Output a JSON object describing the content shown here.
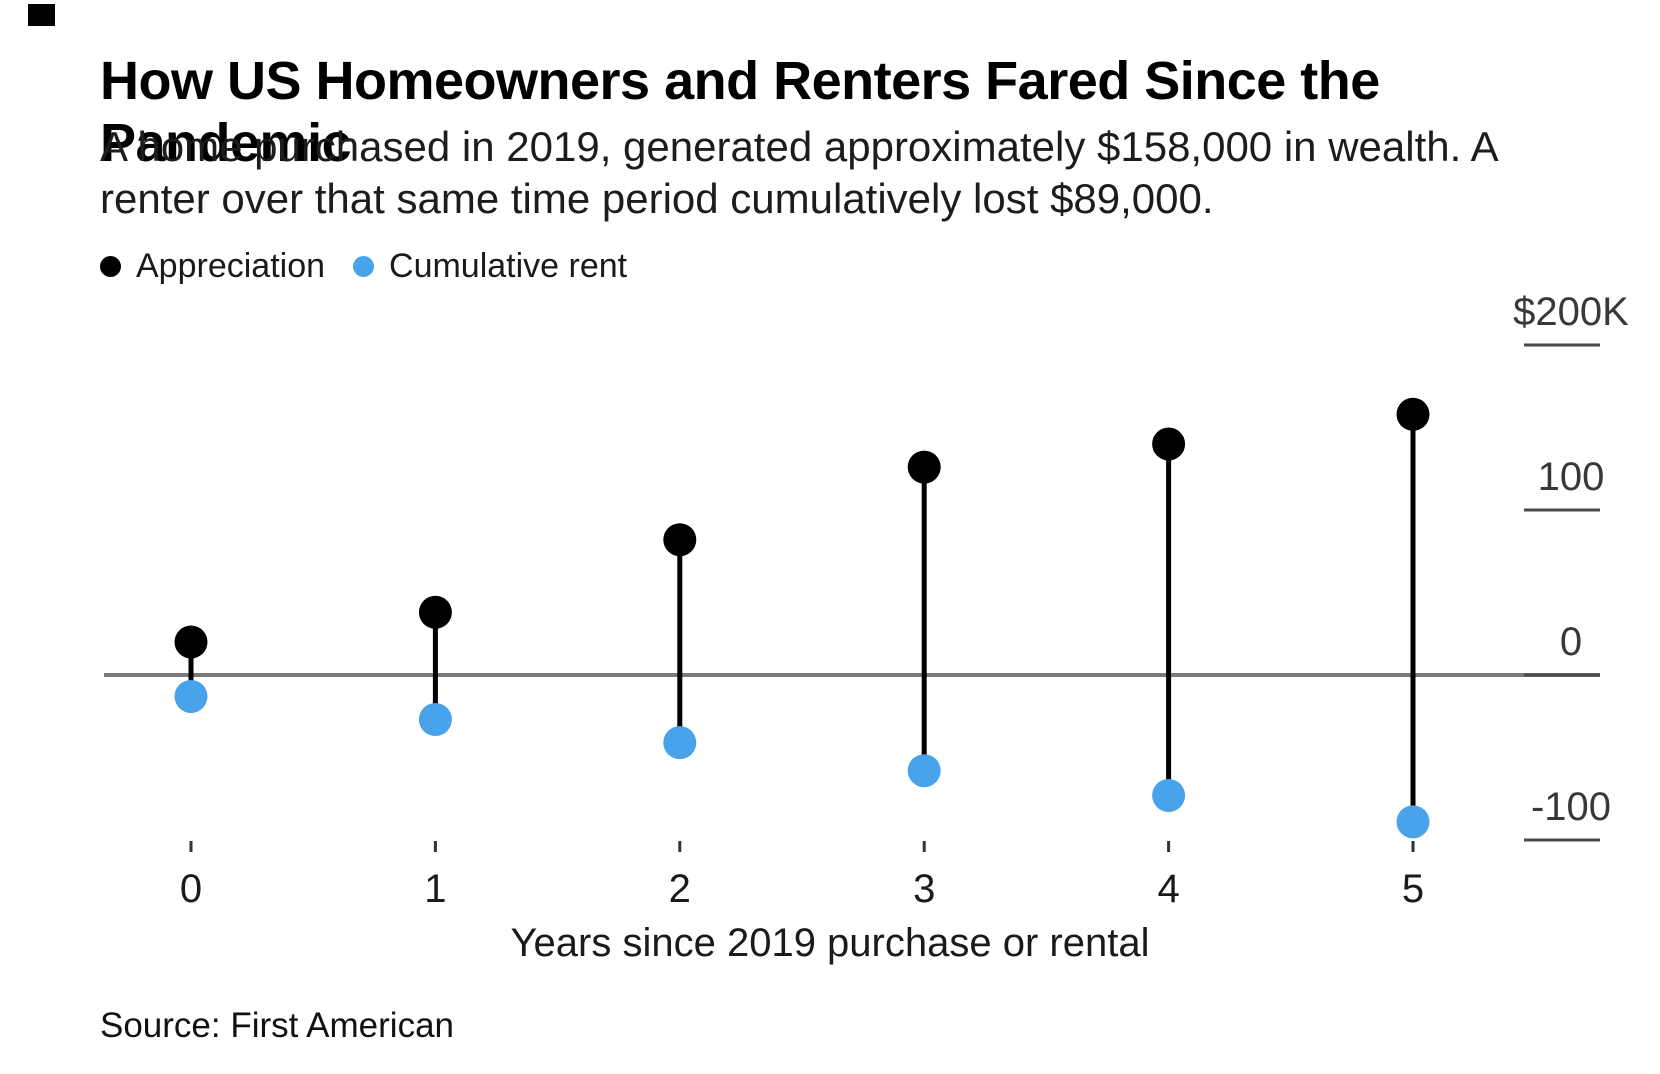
{
  "page_background": "#ffffff",
  "header": {
    "title": "How US Homeowners and Renters Fared Since the Pandemic",
    "subtitle": "A home purchased in 2019, generated approximately $158,000 in wealth. A renter over that same time period cumulatively lost $89,000."
  },
  "legend": {
    "items": [
      {
        "label": "Appreciation",
        "color": "#000000"
      },
      {
        "label": "Cumulative rent",
        "color": "#48A3EB"
      }
    ]
  },
  "chart_data": {
    "type": "scatter",
    "variant": "dumbbell-lollipop",
    "units": "thousands of USD",
    "categories": [
      "0",
      "1",
      "2",
      "3",
      "4",
      "5"
    ],
    "series": [
      {
        "name": "Appreciation",
        "color": "#000000",
        "values": [
          20,
          38,
          82,
          126,
          140,
          158
        ]
      },
      {
        "name": "Cumulative rent",
        "color": "#48A3EB",
        "values": [
          -13,
          -27,
          -41,
          -58,
          -73,
          -89
        ]
      }
    ],
    "connector_color": "#000000",
    "zero_line_color": "#7b7b7b",
    "y_axis": {
      "side": "right",
      "ticks": [
        {
          "label": "$200K",
          "value": 200
        },
        {
          "label": "100",
          "value": 100
        },
        {
          "label": "0",
          "value": 0
        },
        {
          "label": "-100",
          "value": -100
        }
      ],
      "ylim": [
        -120,
        230
      ]
    },
    "xlabel": "Years since 2019 purchase or rental",
    "grid": "zero-line-only",
    "legend_position": "top-left"
  },
  "source": "Source: First American"
}
